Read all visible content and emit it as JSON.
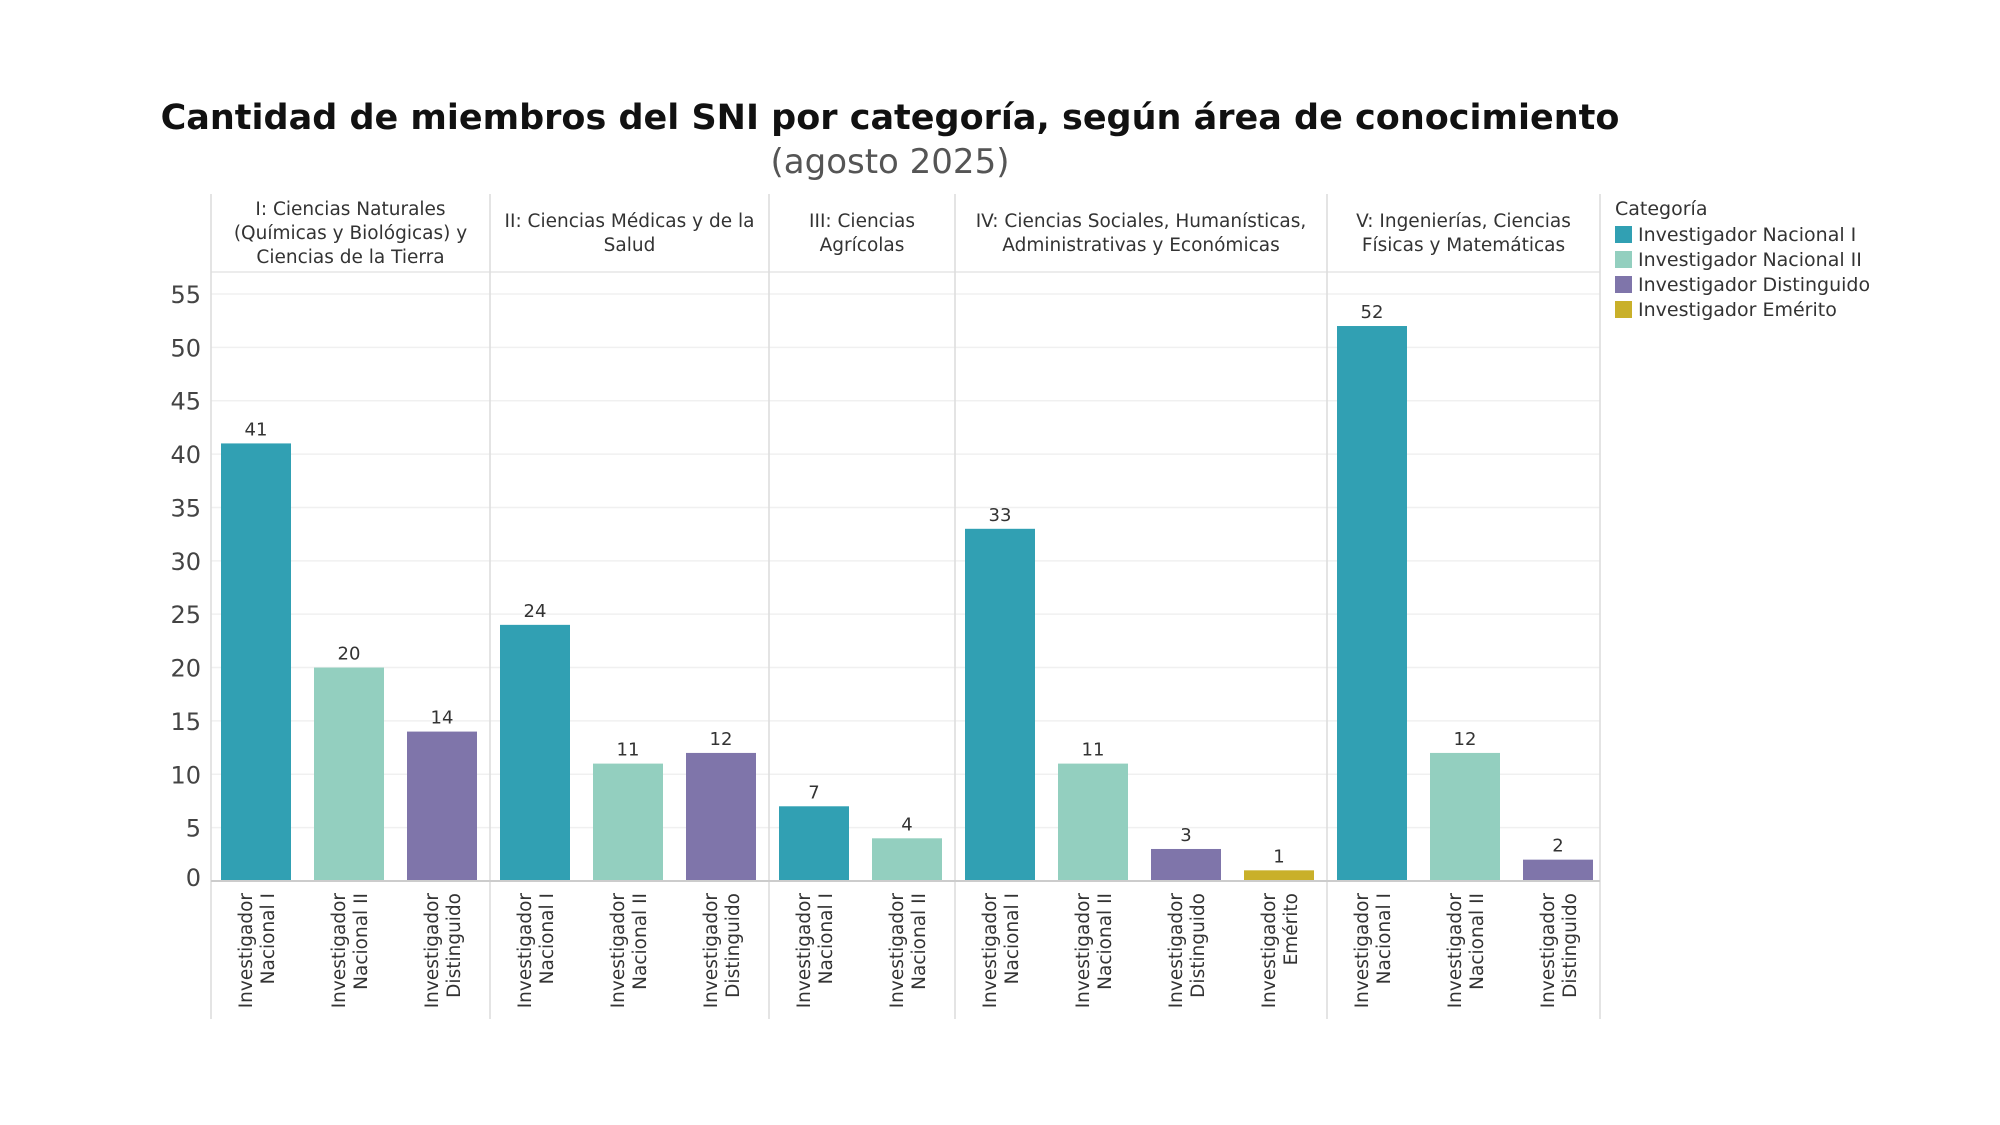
{
  "chart_data": {
    "type": "bar",
    "title": "Cantidad de miembros del SNI por categoría, según área de conocimiento",
    "subtitle": "(agosto 2025)",
    "xlabel": "",
    "ylabel": "",
    "ylim": [
      0,
      55
    ],
    "yticks": [
      0,
      5,
      10,
      15,
      20,
      25,
      30,
      35,
      40,
      45,
      50,
      55
    ],
    "grid": true,
    "legend": {
      "title": "Categoría",
      "placement": "right",
      "entries": [
        {
          "name": "Investigador Nacional I",
          "color": "#31a0b3"
        },
        {
          "name": "Investigador Nacional II",
          "color": "#93cfbf"
        },
        {
          "name": "Investigador Distinguido",
          "color": "#7f75aa"
        },
        {
          "name": "Investigador Emérito",
          "color": "#c9b02a"
        }
      ]
    },
    "panels": [
      {
        "name": "I: Ciencias Naturales (Químicas y Biológicas) y Ciencias de la Tierra",
        "bars": [
          {
            "category": "Investigador Nacional I",
            "value": 41
          },
          {
            "category": "Investigador Nacional II",
            "value": 20
          },
          {
            "category": "Investigador Distinguido",
            "value": 14
          }
        ]
      },
      {
        "name": "II: Ciencias Médicas y de la Salud",
        "bars": [
          {
            "category": "Investigador Nacional I",
            "value": 24
          },
          {
            "category": "Investigador Nacional II",
            "value": 11
          },
          {
            "category": "Investigador Distinguido",
            "value": 12
          }
        ]
      },
      {
        "name": "III: Ciencias Agrícolas",
        "bars": [
          {
            "category": "Investigador Nacional I",
            "value": 7
          },
          {
            "category": "Investigador Nacional II",
            "value": 4
          }
        ]
      },
      {
        "name": "IV: Ciencias Sociales, Humanísticas, Administrativas y Económicas",
        "bars": [
          {
            "category": "Investigador Nacional I",
            "value": 33
          },
          {
            "category": "Investigador Nacional II",
            "value": 11
          },
          {
            "category": "Investigador Distinguido",
            "value": 3
          },
          {
            "category": "Investigador Emérito",
            "value": 1
          }
        ]
      },
      {
        "name": "V: Ingenierías, Ciencias Físicas y Matemáticas",
        "bars": [
          {
            "category": "Investigador Nacional I",
            "value": 52
          },
          {
            "category": "Investigador Nacional II",
            "value": 12
          },
          {
            "category": "Investigador Distinguido",
            "value": 2
          }
        ]
      }
    ]
  }
}
